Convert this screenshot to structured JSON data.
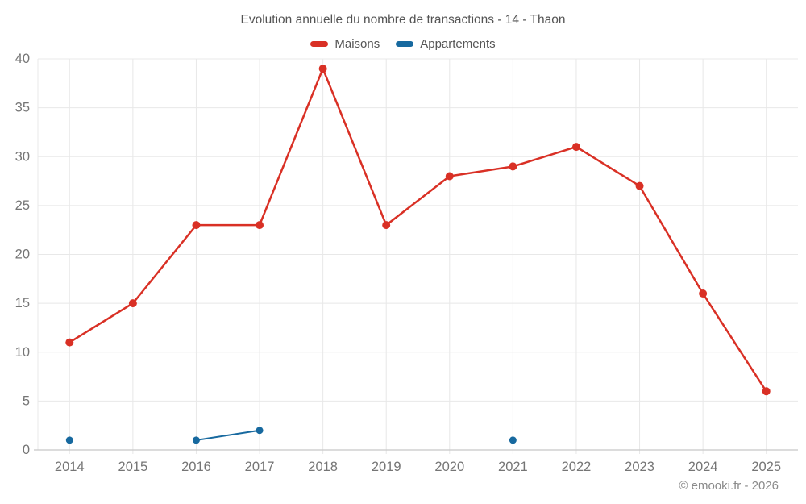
{
  "chart": {
    "title": "Evolution annuelle du nombre de transactions - 14 - Thaon",
    "footer": "© emooki.fr - 2026"
  },
  "style": {
    "grid_color": "#e8e8e8",
    "axis_color": "#c8c8c8",
    "tick_label_color": "#757575",
    "title_color": "#545454",
    "legend_text_color": "#555555",
    "footer_color": "#8a8a8a",
    "background": "#ffffff"
  },
  "chart_data": {
    "type": "line",
    "title": "Evolution annuelle du nombre de transactions - 14 - Thaon",
    "categories": [
      "2014",
      "2015",
      "2016",
      "2017",
      "2018",
      "2019",
      "2020",
      "2021",
      "2022",
      "2023",
      "2024",
      "2025"
    ],
    "series": [
      {
        "name": "Maisons",
        "color": "#d93025",
        "values": [
          11,
          15,
          23,
          23,
          39,
          23,
          28,
          29,
          31,
          27,
          16,
          6
        ],
        "marker_radius": 5,
        "line_width": 2.5
      },
      {
        "name": "Appartements",
        "color": "#17699f",
        "values": [
          1,
          null,
          1,
          2,
          null,
          null,
          null,
          1,
          null,
          null,
          null,
          null
        ],
        "marker_radius": 4.5,
        "line_width": 2
      }
    ],
    "xlabel": "",
    "ylabel": "",
    "ylim": [
      0,
      40
    ],
    "yticks": [
      0,
      5,
      10,
      15,
      20,
      25,
      30,
      35,
      40
    ],
    "grid": true,
    "legend_position": "top"
  }
}
